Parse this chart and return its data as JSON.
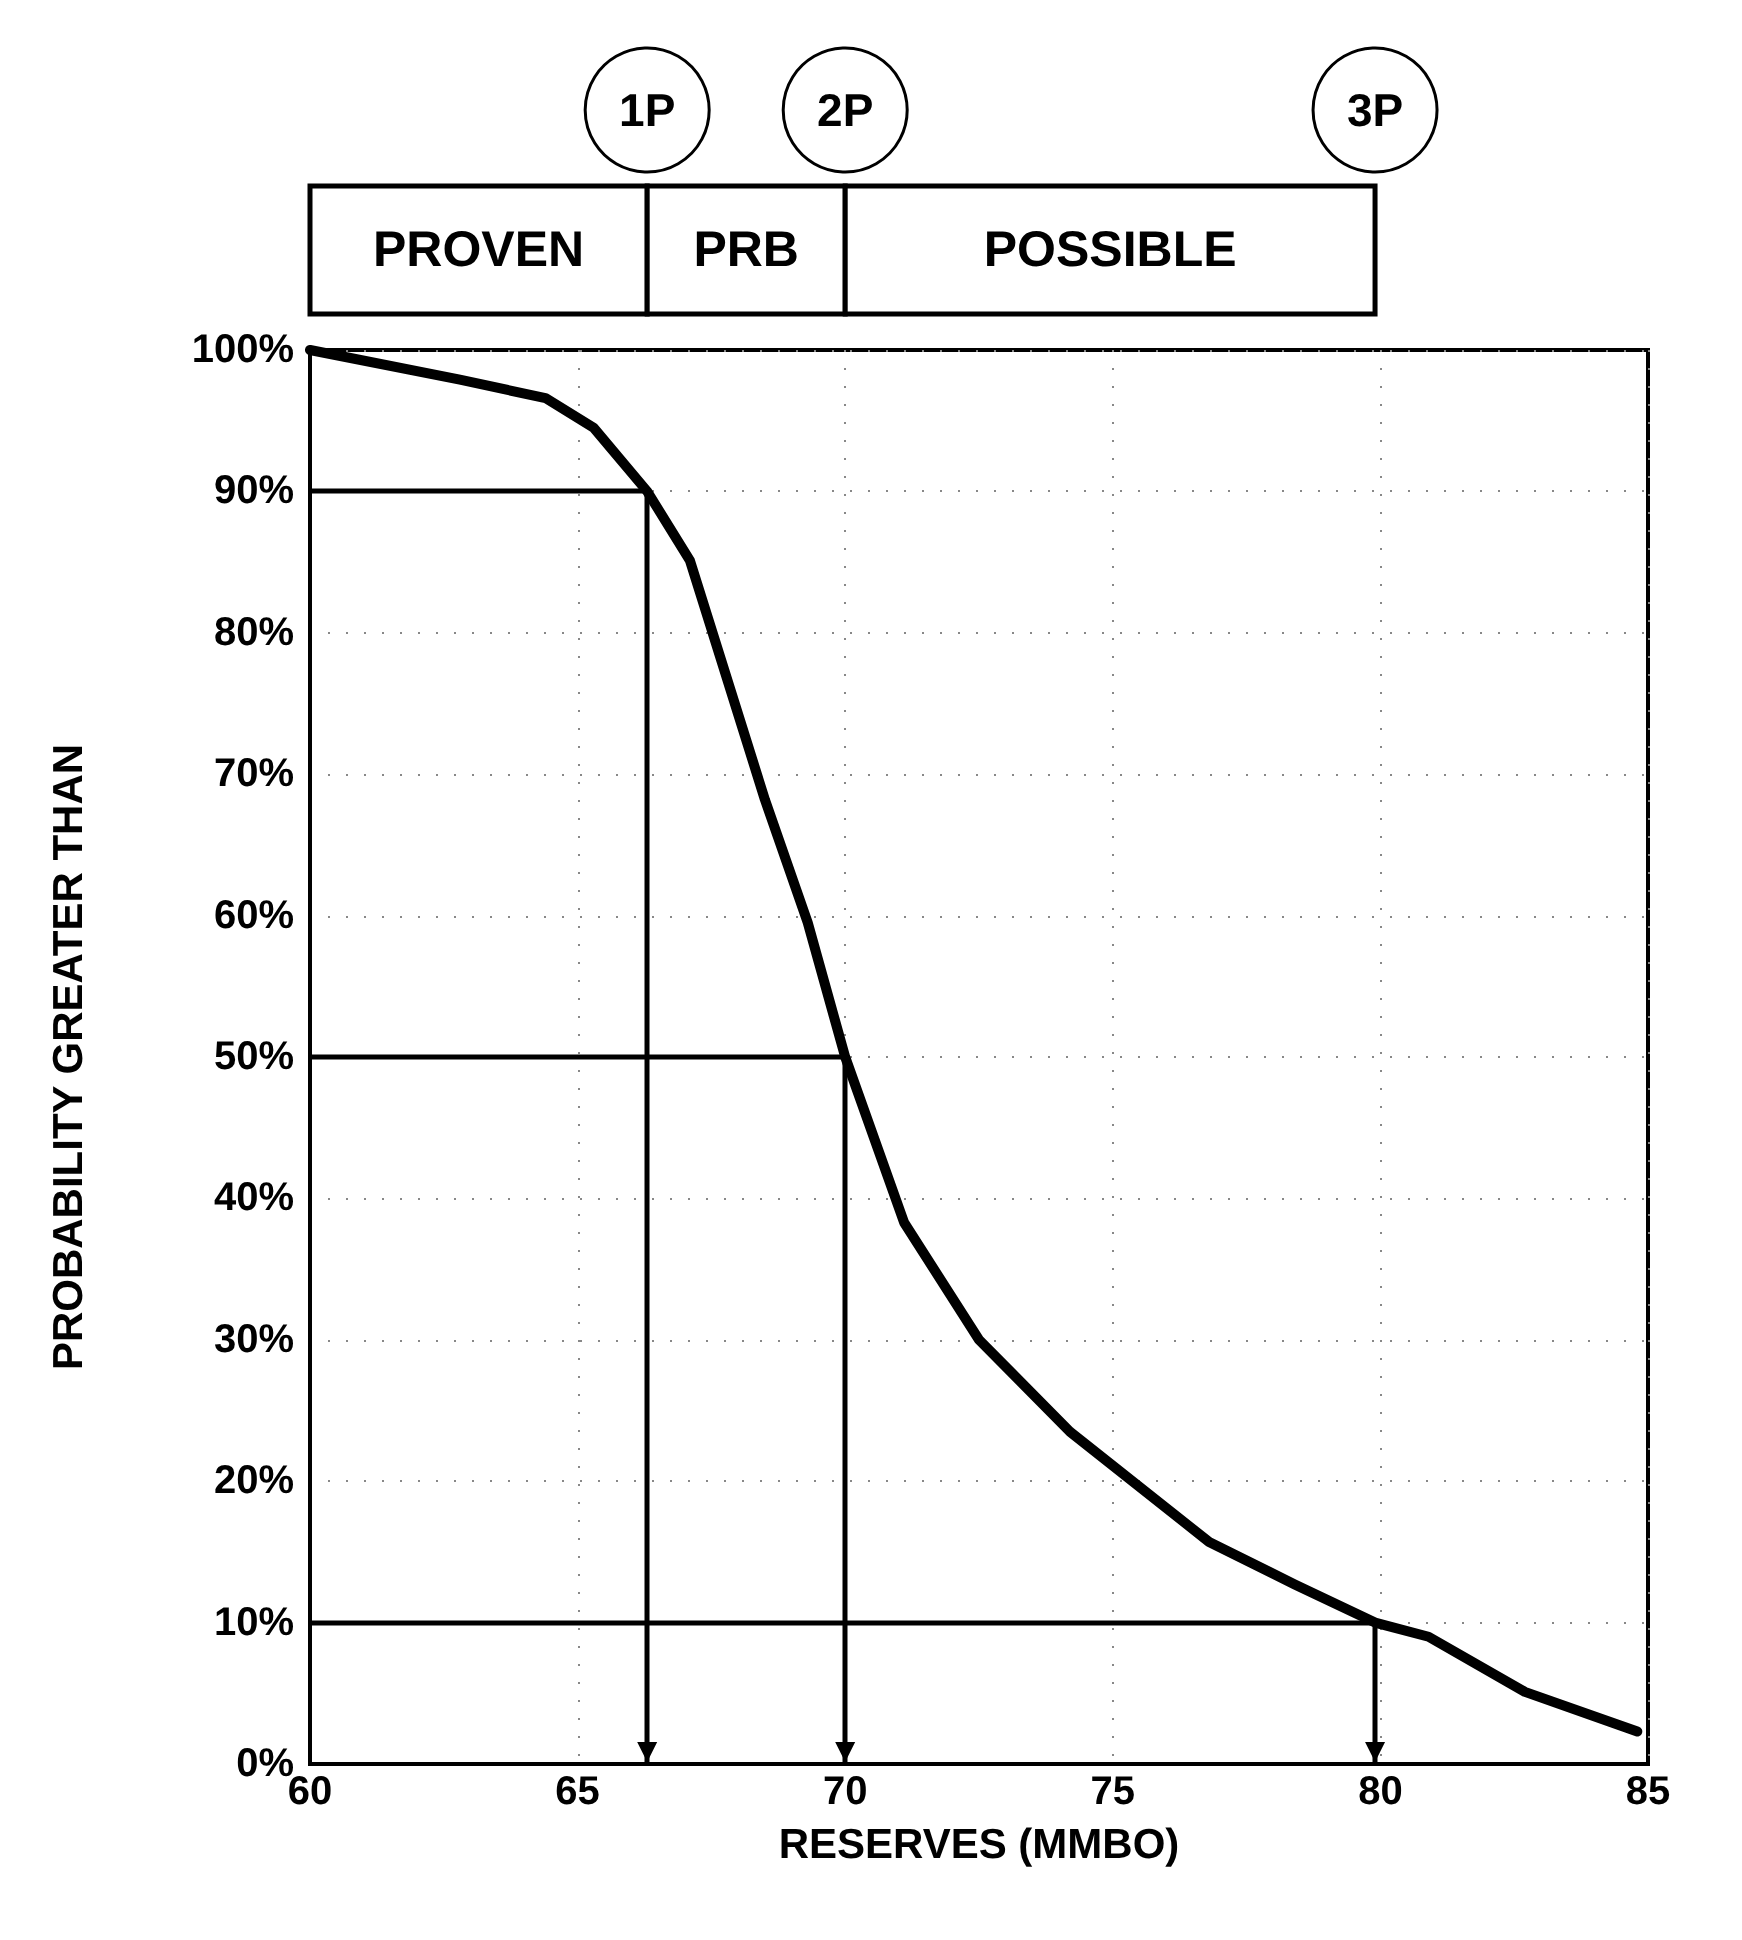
{
  "chart_data": {
    "type": "line",
    "xlabel": "RESERVES (MMBO)",
    "ylabel": "PROBABILITY GREATER THAN",
    "xlim": [
      60,
      85
    ],
    "xticks": [
      60,
      65,
      70,
      75,
      80,
      85
    ],
    "ylim": [
      0,
      100
    ],
    "yticks": [
      {
        "value": 0,
        "label": "0%"
      },
      {
        "value": 10,
        "label": "10%"
      },
      {
        "value": 20,
        "label": "20%"
      },
      {
        "value": 30,
        "label": "30%"
      },
      {
        "value": 40,
        "label": "40%"
      },
      {
        "value": 50,
        "label": "50%"
      },
      {
        "value": 60,
        "label": "60%"
      },
      {
        "value": 70,
        "label": "70%"
      },
      {
        "value": 80,
        "label": "80%"
      },
      {
        "value": 90,
        "label": "90%"
      },
      {
        "value": 100,
        "label": "100%"
      }
    ],
    "grid": true,
    "marker": "none",
    "line_style": "solid",
    "series": [
      {
        "color": "#000000",
        "x": [
          60,
          62.8,
          64.4,
          65.3,
          66.3,
          67.1,
          68.5,
          69.3,
          70,
          71.1,
          72.5,
          74.2,
          76.8,
          78.4,
          79.9,
          80.9,
          82.7,
          84.8
        ],
        "values": [
          100,
          97.9,
          96.6,
          94.5,
          90,
          85.1,
          68.2,
          59.5,
          50,
          38.3,
          30,
          23.5,
          15.7,
          12.7,
          10,
          9,
          5.1,
          2.3
        ]
      }
    ],
    "ref_lines": [
      {
        "axis": "x",
        "value": 66.3
      },
      {
        "axis": "x",
        "value": 70
      },
      {
        "axis": "x",
        "value": 79.9
      },
      {
        "axis": "y",
        "value": 90
      },
      {
        "axis": "y",
        "value": 50
      },
      {
        "axis": "y",
        "value": 10
      }
    ],
    "annotations": [
      "1P",
      "2P",
      "3P",
      "PROVEN",
      "PRB",
      "POSSIBLE"
    ]
  }
}
